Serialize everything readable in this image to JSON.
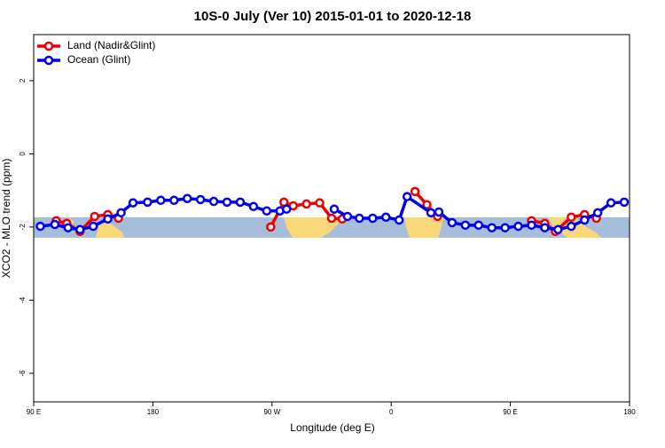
{
  "chart_data": {
    "type": "line",
    "title": "10S-0 July (Ver 10)   2015-01-01 to 2020-12-18",
    "x_label": "Longitude (deg E)",
    "y_label": "XCO2 - MLO trend (ppm)",
    "xlim": [
      90,
      540
    ],
    "xticks": [
      {
        "value": 90,
        "label": "90 E"
      },
      {
        "value": 180,
        "label": "180"
      },
      {
        "value": 270,
        "label": "90 W"
      },
      {
        "value": 360,
        "label": "0"
      },
      {
        "value": 450,
        "label": "90 E"
      },
      {
        "value": 540,
        "label": "180"
      }
    ],
    "ylim": [
      -6.78,
      3.26
    ],
    "yticks": [
      -6,
      -4,
      -2,
      0,
      2
    ],
    "legend": "top-left",
    "series": [
      {
        "name": "Land (Nadir&Glint)",
        "color": "#ee0000",
        "x": [
          107,
          115,
          125,
          136,
          146,
          154,
          null,
          269,
          279,
          286,
          296,
          306,
          315,
          323,
          null,
          378,
          387,
          395,
          null,
          466,
          476,
          484,
          496,
          506,
          515
        ],
        "values": [
          -1.83,
          -1.9,
          -2.12,
          -1.71,
          -1.66,
          -1.76,
          null,
          -2.0,
          -1.32,
          -1.42,
          -1.37,
          -1.34,
          -1.76,
          -1.78,
          null,
          -1.03,
          -1.39,
          -1.71,
          null,
          -1.83,
          -1.9,
          -2.12,
          -1.73,
          -1.66,
          -1.76
        ]
      },
      {
        "name": "Ocean (Glint)",
        "color": "#0000ee",
        "x": [
          95,
          106,
          116,
          125,
          135,
          146,
          156,
          165,
          176,
          186,
          196,
          206,
          216,
          226,
          236,
          246,
          256,
          266,
          276,
          281,
          null,
          317,
          327,
          336,
          346,
          356,
          366,
          372,
          390,
          396,
          406,
          416,
          426,
          436,
          446,
          456,
          466,
          476,
          486,
          496,
          506,
          516,
          526,
          536
        ],
        "values": [
          -1.98,
          -1.93,
          -2.02,
          -2.07,
          -1.98,
          -1.78,
          -1.61,
          -1.34,
          -1.32,
          -1.27,
          -1.27,
          -1.22,
          -1.25,
          -1.3,
          -1.32,
          -1.32,
          -1.44,
          -1.56,
          -1.56,
          -1.51,
          null,
          -1.51,
          -1.71,
          -1.76,
          -1.76,
          -1.73,
          -1.81,
          -1.17,
          -1.61,
          -1.59,
          -1.88,
          -1.95,
          -1.95,
          -2.02,
          -2.02,
          -1.98,
          -1.95,
          -2.02,
          -2.07,
          -1.98,
          -1.81,
          -1.61,
          -1.34,
          -1.32
        ]
      }
    ]
  }
}
